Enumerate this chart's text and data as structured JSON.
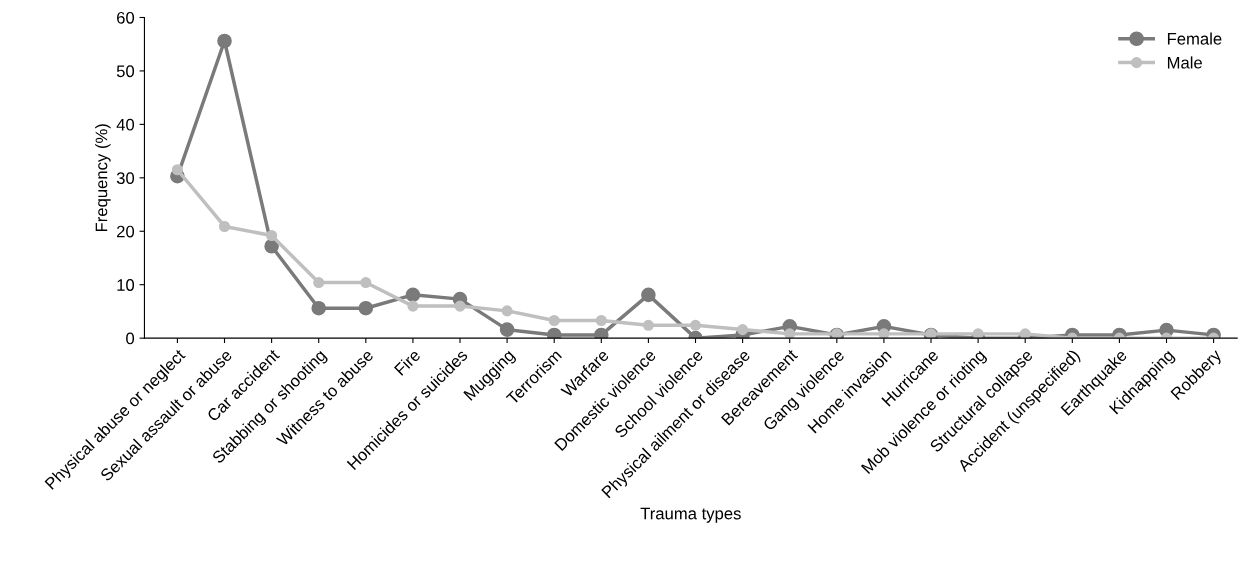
{
  "chart_data": {
    "type": "line",
    "xlabel": "Trauma types",
    "ylabel": "Frequency (%)",
    "categories": [
      "Physical abuse or neglect",
      "Sexual assault or abuse",
      "Car accident",
      "Stabbing or shooting",
      "Witness to abuse",
      "Fire",
      "Homicides or suicides",
      "Mugging",
      "Terrorism",
      "Warfare",
      "Domestic violence",
      "School violence",
      "Physical ailment or disease",
      "Bereavement",
      "Gang violence",
      "Home invasion",
      "Hurricane",
      "Mob violence or rioting",
      "Structural collapse",
      "Accident (unspecified)",
      "Earthquake",
      "Kidnapping",
      "Robbery"
    ],
    "series": [
      {
        "name": "Female",
        "color": "#7a7a7a",
        "values": [
          30.3,
          55.6,
          17.2,
          5.6,
          5.6,
          8.1,
          7.3,
          1.6,
          0.6,
          0.6,
          8.1,
          0,
          0.6,
          2.2,
          0.6,
          2.2,
          0.6,
          0,
          0,
          0.6,
          0.6,
          1.5,
          0.6
        ]
      },
      {
        "name": "Male",
        "color": "#bfbfbf",
        "values": [
          31.5,
          20.9,
          19.2,
          10.4,
          10.4,
          6.0,
          6.0,
          5.1,
          3.3,
          3.3,
          2.4,
          2.4,
          1.6,
          0.8,
          0.8,
          0.8,
          0.8,
          0.8,
          0.8,
          0,
          0,
          0,
          0
        ]
      }
    ],
    "ylim": [
      0,
      60
    ],
    "yticks": [
      0,
      10,
      20,
      30,
      40,
      50,
      60
    ],
    "legend": "top right",
    "marker": "circle",
    "line_style": "solid",
    "grid": false
  }
}
